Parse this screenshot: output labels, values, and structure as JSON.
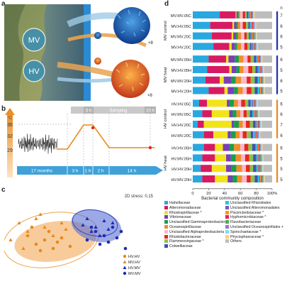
{
  "panels": {
    "a": "a",
    "b": "b",
    "c": "c",
    "d": "d"
  },
  "panel_a": {
    "mv": "MV",
    "hv": "HV",
    "mult1": "×8",
    "mult2": "×8"
  },
  "panel_b": {
    "yticks": [
      "35",
      "32",
      "29"
    ],
    "yunit": "°C",
    "durations": [
      "17 months",
      "3 h",
      "1 h",
      "2 h",
      "14 h"
    ],
    "markers": [
      "5 h",
      "Sampling",
      "20 h"
    ]
  },
  "panel_c": {
    "stress": "2D stress: 0.15",
    "legend": [
      {
        "label": "HV.HV",
        "shape": "circle",
        "color": "#e8891c"
      },
      {
        "label": "MV.HV",
        "shape": "triangle",
        "color": "#e8891c"
      },
      {
        "label": "HV.MV",
        "shape": "triangle",
        "color": "#1f2db0"
      },
      {
        "label": "MV.MV",
        "shape": "circle",
        "color": "#1f2db0"
      }
    ]
  },
  "panel_d": {
    "n_header": "n",
    "groups": [
      {
        "label": "MV control",
        "rows": [
          "MV.MV.05C",
          "MV.HV.05C",
          "MV.MV.20C",
          "MV.HV.20C"
        ],
        "n": [
          "7",
          "6",
          "6",
          "5"
        ]
      },
      {
        "label": "MV heat",
        "rows": [
          "MV.MV.05H",
          "MV.HV.05H",
          "MV.MV.20H",
          "MV.HV.20H"
        ],
        "n": [
          "6",
          "5",
          "6",
          "5"
        ]
      },
      {
        "label": "HV control",
        "rows": [
          "HV.HV.05C",
          "HV.MV.05C",
          "HV.HV.20C",
          "HV.MV.20C"
        ],
        "n": [
          "6",
          "6",
          "7",
          "6"
        ]
      },
      {
        "label": "HV heat",
        "rows": [
          "HV.HV.05H",
          "HV.MV.05H",
          "HV.HV.20H",
          "HV.MV.20H"
        ],
        "n": [
          "6",
          "5",
          "5",
          "5"
        ]
      }
    ],
    "xticks": [
      "0",
      "20",
      "40",
      "60",
      "80",
      "100%"
    ],
    "xlabel": "Bacterial community composition"
  },
  "taxa": [
    {
      "name": "Hahellaceae",
      "color": "#29a8e0"
    },
    {
      "name": "Alteromonadaceae",
      "color": "#d81b60"
    },
    {
      "name": "Rhodospirillaceae *",
      "color": "#f2e41a"
    },
    {
      "name": "Vibrionaceae",
      "color": "#7b3fb5"
    },
    {
      "name": "Unclassified Gammaproteobacteria",
      "color": "#1a9e4a"
    },
    {
      "name": "Oceanospirillaceae",
      "color": "#f28c28"
    },
    {
      "name": "Unclassified Alphaproteobacteria *",
      "color": "#f6b7cf"
    },
    {
      "name": "Rhodobacteraceae",
      "color": "#e8261c"
    },
    {
      "name": "Flammeovirgaceae *",
      "color": "#8bc34a"
    },
    {
      "name": "Colwelliaceae",
      "color": "#3f51b5"
    },
    {
      "name": "Unclassified Rhizobiales",
      "color": "#26c6da"
    },
    {
      "name": "Unclassified Alteromonadales",
      "color": "#7e57c2"
    },
    {
      "name": "Piscirickettsiaceae *",
      "color": "#ff9800"
    },
    {
      "name": "Hyphomicrobiaceae *",
      "color": "#e91e63"
    },
    {
      "name": "Flavobacteriaceae",
      "color": "#4caf50"
    },
    {
      "name": "Unclassified Oceanospirillales +",
      "color": "#9575cd"
    },
    {
      "name": "Spirochaetaceae *",
      "color": "#80deea"
    },
    {
      "name": "Phycisphaeraceae *",
      "color": "#ffcc80"
    },
    {
      "name": "Others",
      "color": "#bdbdbd"
    }
  ],
  "chart_data": {
    "type": "bar",
    "orientation": "horizontal-stacked",
    "categories": [
      "MV.MV.05C",
      "MV.HV.05C",
      "MV.MV.20C",
      "MV.HV.20C",
      "MV.MV.05H",
      "MV.HV.05H",
      "MV.MV.20H",
      "MV.HV.20H",
      "HV.HV.05C",
      "HV.MV.05C",
      "HV.HV.20C",
      "HV.MV.20C",
      "HV.HV.05H",
      "HV.MV.05H",
      "HV.HV.20H",
      "HV.MV.20H"
    ],
    "series_order": [
      "Hahellaceae",
      "Alteromonadaceae",
      "Rhodospirillaceae *",
      "Vibrionaceae",
      "Unclassified Gammaproteobacteria",
      "Oceanospirillaceae",
      "Unclassified Alphaproteobacteria *",
      "Rhodobacteraceae",
      "Flammeovirgaceae *",
      "Colwelliaceae",
      "Unclassified Rhizobiales",
      "Unclassified Alteromonadales",
      "Piscirickettsiaceae *",
      "Hyphomicrobiaceae *",
      "Flavobacteriaceae",
      "Unclassified Oceanospirillales +",
      "Spirochaetaceae *",
      "Phycisphaeraceae *",
      "Others"
    ],
    "values": [
      [
        34,
        20,
        1,
        2,
        1,
        2,
        3,
        3,
        2,
        2,
        1,
        1,
        1,
        1,
        1,
        1,
        1,
        1,
        22
      ],
      [
        22,
        28,
        2,
        3,
        2,
        3,
        3,
        4,
        3,
        2,
        1,
        1,
        1,
        1,
        1,
        1,
        1,
        1,
        20
      ],
      [
        24,
        25,
        2,
        3,
        3,
        4,
        4,
        3,
        3,
        2,
        1,
        1,
        1,
        1,
        1,
        1,
        1,
        1,
        19
      ],
      [
        26,
        20,
        3,
        4,
        3,
        5,
        4,
        4,
        3,
        2,
        1,
        1,
        1,
        1,
        1,
        1,
        1,
        1,
        18
      ],
      [
        20,
        22,
        3,
        8,
        5,
        6,
        5,
        4,
        4,
        3,
        1,
        1,
        1,
        1,
        1,
        1,
        1,
        1,
        12
      ],
      [
        18,
        28,
        3,
        6,
        4,
        5,
        6,
        5,
        4,
        3,
        1,
        1,
        1,
        1,
        1,
        1,
        1,
        1,
        10
      ],
      [
        16,
        18,
        5,
        10,
        5,
        7,
        7,
        5,
        5,
        4,
        2,
        1,
        1,
        1,
        1,
        1,
        1,
        1,
        9
      ],
      [
        20,
        20,
        4,
        8,
        5,
        6,
        5,
        6,
        4,
        4,
        2,
        1,
        1,
        1,
        1,
        1,
        1,
        1,
        9
      ],
      [
        8,
        10,
        25,
        3,
        6,
        5,
        4,
        5,
        4,
        3,
        2,
        1,
        1,
        1,
        1,
        1,
        1,
        1,
        18
      ],
      [
        12,
        12,
        22,
        4,
        5,
        5,
        4,
        4,
        4,
        3,
        2,
        1,
        1,
        1,
        1,
        1,
        1,
        1,
        16
      ],
      [
        6,
        8,
        35,
        3,
        6,
        5,
        4,
        5,
        4,
        3,
        1,
        1,
        1,
        1,
        1,
        1,
        1,
        1,
        13
      ],
      [
        14,
        12,
        18,
        4,
        6,
        5,
        4,
        5,
        5,
        3,
        2,
        1,
        1,
        1,
        1,
        1,
        1,
        1,
        15
      ],
      [
        14,
        14,
        10,
        8,
        6,
        8,
        5,
        5,
        5,
        4,
        2,
        1,
        1,
        1,
        1,
        1,
        1,
        1,
        12
      ],
      [
        12,
        16,
        14,
        6,
        6,
        7,
        5,
        5,
        5,
        4,
        2,
        1,
        1,
        1,
        1,
        1,
        1,
        1,
        11
      ],
      [
        10,
        14,
        18,
        7,
        6,
        7,
        5,
        5,
        4,
        4,
        2,
        1,
        1,
        1,
        1,
        1,
        1,
        1,
        11
      ],
      [
        12,
        16,
        16,
        6,
        6,
        6,
        6,
        5,
        5,
        4,
        2,
        1,
        1,
        1,
        1,
        1,
        1,
        1,
        9
      ]
    ],
    "xlim": [
      0,
      100
    ],
    "xlabel": "Bacterial community composition"
  },
  "chart_b": {
    "type": "line",
    "segments": [
      {
        "label": "17 months",
        "temp": "29-33 fluctuating"
      },
      {
        "label": "3 h",
        "from": 29,
        "to": 35
      },
      {
        "label": "1 h",
        "from": 35,
        "to": 35
      },
      {
        "label": "2 h",
        "from": 35,
        "to": 32
      },
      {
        "label": "14 h",
        "from": 32,
        "to": 32
      }
    ],
    "ylim": [
      28,
      36
    ]
  },
  "chart_c": {
    "type": "scatter",
    "groups": [
      {
        "name": "HV.HV",
        "points": [
          [
            -0.6,
            0.1
          ],
          [
            -0.5,
            -0.1
          ],
          [
            -0.4,
            0.0
          ],
          [
            -0.3,
            -0.2
          ],
          [
            -0.2,
            0.05
          ],
          [
            -0.35,
            0.2
          ],
          [
            -0.45,
            -0.25
          ],
          [
            -0.25,
            -0.05
          ],
          [
            -0.55,
            0.3
          ],
          [
            -0.1,
            -0.15
          ]
        ]
      },
      {
        "name": "MV.HV",
        "points": [
          [
            -0.7,
            0.4
          ],
          [
            -0.6,
            0.2
          ],
          [
            -0.5,
            0.5
          ],
          [
            -0.4,
            0.3
          ],
          [
            -0.3,
            0.1
          ],
          [
            -0.2,
            0.4
          ],
          [
            -0.65,
            -0.2
          ],
          [
            -0.15,
            0.25
          ],
          [
            -0.45,
            0.6
          ],
          [
            -0.8,
            0.0
          ]
        ]
      },
      {
        "name": "HV.MV",
        "points": [
          [
            0.1,
            0.5
          ],
          [
            0.2,
            0.3
          ],
          [
            0.3,
            0.45
          ],
          [
            0.15,
            0.2
          ],
          [
            0.35,
            0.25
          ],
          [
            0.05,
            0.35
          ],
          [
            0.25,
            0.1
          ],
          [
            0.4,
            0.4
          ]
        ]
      },
      {
        "name": "MV.MV",
        "points": [
          [
            0.2,
            0.2
          ],
          [
            0.3,
            0.1
          ],
          [
            0.4,
            0.3
          ],
          [
            0.1,
            0.0
          ],
          [
            0.25,
            -0.1
          ],
          [
            0.5,
            0.2
          ],
          [
            0.35,
            -0.05
          ],
          [
            0.45,
            0.05
          ],
          [
            0.15,
            0.3
          ],
          [
            0.55,
            -0.2
          ]
        ]
      }
    ]
  }
}
